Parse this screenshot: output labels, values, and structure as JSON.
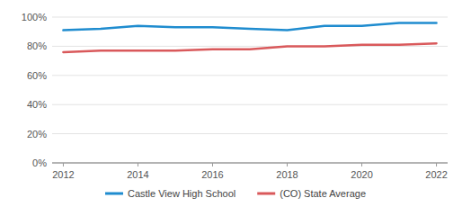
{
  "chart_data": {
    "type": "line",
    "x": [
      2012,
      2013,
      2014,
      2015,
      2016,
      2017,
      2018,
      2019,
      2020,
      2021,
      2022
    ],
    "xlim": [
      2011.7,
      2022.3
    ],
    "xticks": [
      2012,
      2014,
      2016,
      2018,
      2020,
      2022
    ],
    "ylim": [
      0,
      100
    ],
    "yticks": [
      {
        "value": 0,
        "label": "0%"
      },
      {
        "value": 20,
        "label": "20%"
      },
      {
        "value": 40,
        "label": "40%"
      },
      {
        "value": 60,
        "label": "60%"
      },
      {
        "value": 80,
        "label": "80%"
      },
      {
        "value": 100,
        "label": "100%"
      }
    ],
    "grid": true,
    "legend": "bottom",
    "series": [
      {
        "name": "Castle View High School",
        "color": "#1f8ccf",
        "values": [
          91,
          92,
          94,
          93,
          93,
          92,
          91,
          94,
          94,
          96,
          96
        ]
      },
      {
        "name": "(CO) State Average",
        "color": "#d9595b",
        "values": [
          76,
          77,
          77,
          77,
          78,
          78,
          80,
          80,
          81,
          81,
          82
        ]
      }
    ]
  }
}
